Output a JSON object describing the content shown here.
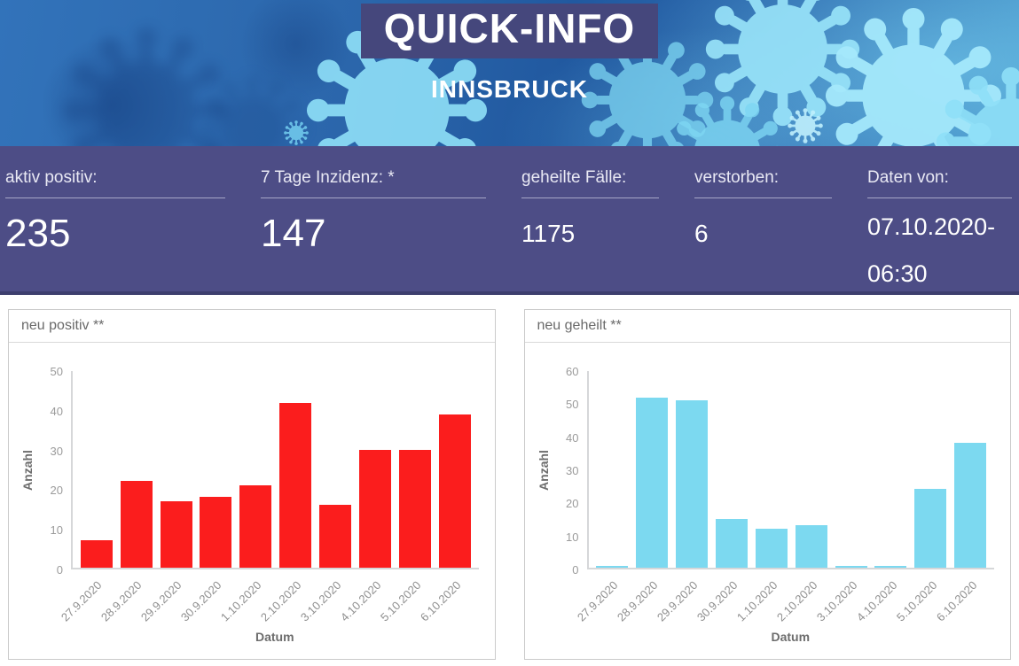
{
  "header": {
    "title": "QUICK-INFO",
    "subtitle": "INNSBRUCK"
  },
  "stats": [
    {
      "label": "aktiv positiv:",
      "value": "235"
    },
    {
      "label": "7 Tage Inzidenz: *",
      "value": "147"
    },
    {
      "label": "geheilte Fälle:",
      "value": "1175"
    },
    {
      "label": "verstorben:",
      "value": "6"
    },
    {
      "label": "Daten von:",
      "value": "07.10.2020-06:30"
    }
  ],
  "colors": {
    "stats_bar": "#4d4d86",
    "title_box": "#45477c",
    "positive_bar": "#fb1d1d",
    "healed_bar": "#7cd9f0"
  },
  "chart_data": [
    {
      "type": "bar",
      "title": "neu positiv **",
      "xlabel": "Datum",
      "ylabel": "Anzahl",
      "categories": [
        "27.9.2020",
        "28.9.2020",
        "29.9.2020",
        "30.9.2020",
        "1.10.2020",
        "2.10.2020",
        "3.10.2020",
        "4.10.2020",
        "5.10.2020",
        "6.10.2020"
      ],
      "values": [
        7,
        22,
        17,
        18,
        21,
        42,
        16,
        30,
        30,
        39
      ],
      "ylim": [
        0,
        50
      ],
      "yticks": [
        0,
        10,
        20,
        30,
        40,
        50
      ],
      "grid": false,
      "legend": false,
      "bar_color": "#fb1d1d"
    },
    {
      "type": "bar",
      "title": "neu geheilt **",
      "xlabel": "Datum",
      "ylabel": "Anzahl",
      "categories": [
        "27.9.2020",
        "28.9.2020",
        "29.9.2020",
        "30.9.2020",
        "1.10.2020",
        "2.10.2020",
        "3.10.2020",
        "4.10.2020",
        "5.10.2020",
        "6.10.2020"
      ],
      "values": [
        0,
        52,
        51,
        15,
        12,
        13,
        0,
        0,
        24,
        38
      ],
      "ylim": [
        0,
        60
      ],
      "yticks": [
        0,
        10,
        20,
        30,
        40,
        50,
        60
      ],
      "grid": false,
      "legend": false,
      "bar_color": "#7cd9f0"
    }
  ]
}
